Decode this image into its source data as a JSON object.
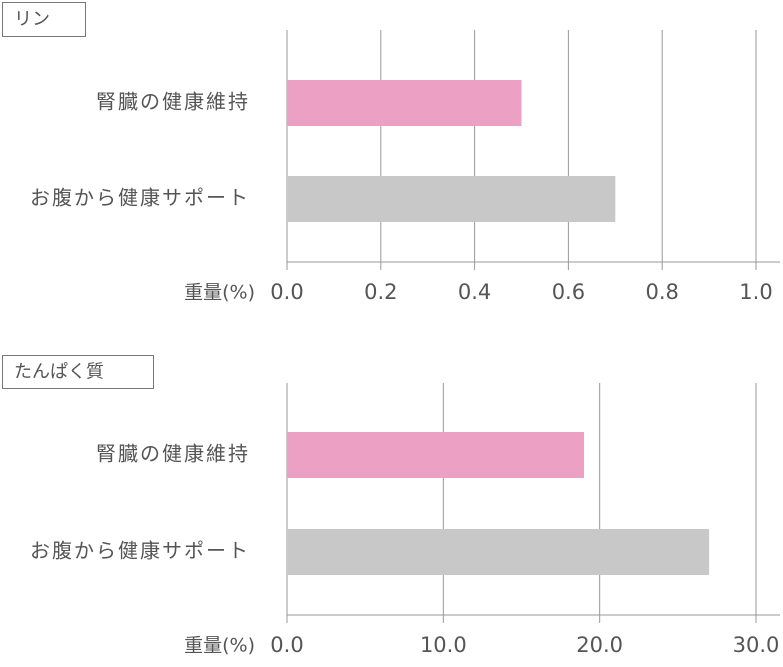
{
  "chart_data": [
    {
      "type": "bar",
      "orientation": "horizontal",
      "title": "リン",
      "categories": [
        "腎臓の健康維持",
        "お腹から健康サポート"
      ],
      "values": [
        0.5,
        0.7
      ],
      "colors": [
        "#eca0c4",
        "#c8c8c8"
      ],
      "x_label": "重量(%)",
      "xlim": [
        0,
        1.0
      ],
      "xticks": [
        {
          "value": 0,
          "label": "0.0"
        },
        0.2,
        0.4,
        0.6,
        0.8,
        {
          "value": 1.0,
          "label": "1.0"
        }
      ],
      "grid": true
    },
    {
      "type": "bar",
      "orientation": "horizontal",
      "title": "たんぱく質",
      "categories": [
        "腎臓の健康維持",
        "お腹から健康サポート"
      ],
      "values": [
        19,
        27
      ],
      "colors": [
        "#eca0c4",
        "#c8c8c8"
      ],
      "x_label": "重量(%)",
      "xlim": [
        0,
        30
      ],
      "xticks": [
        {
          "value": 0,
          "label": "0.0"
        },
        {
          "value": 10,
          "label": "10.0"
        },
        {
          "value": 20,
          "label": "20.0"
        },
        {
          "value": 30,
          "label": "30.0"
        }
      ],
      "grid": true
    }
  ]
}
